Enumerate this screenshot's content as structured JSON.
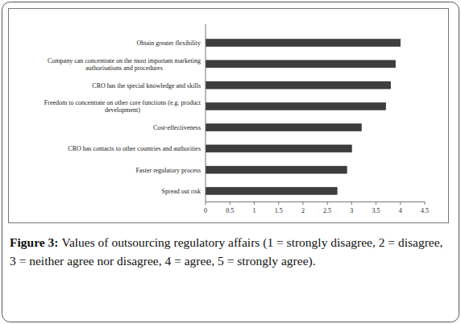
{
  "chart_data": {
    "type": "bar",
    "orientation": "horizontal",
    "caption_label": "Figure 3:",
    "caption": "Values of outsourcing regulatory affairs (1 = strongly disagree, 2 = disagree, 3 = neither agree nor disagree, 4 = agree, 5 = strongly agree).",
    "categories": [
      "Obtain greater flexibility",
      "Company can concentrate on the most important marketing authorisations and procedures",
      "CRO has the special knowledge and skills",
      "Freedom to concentrate on other core functions (e.g. product development)",
      "Cost-effectiveness",
      "CRO has contacts to other countries and authorities",
      "Faster regulatory process",
      "Spread out risk"
    ],
    "values": [
      4.0,
      3.9,
      3.8,
      3.7,
      3.2,
      3.0,
      2.9,
      2.7
    ],
    "color": "#3d3d3d",
    "xlim": [
      0,
      4.5
    ],
    "xticks": [
      0,
      0.5,
      1,
      1.5,
      2,
      2.5,
      3,
      3.5,
      4,
      4.5
    ],
    "grid": false
  }
}
